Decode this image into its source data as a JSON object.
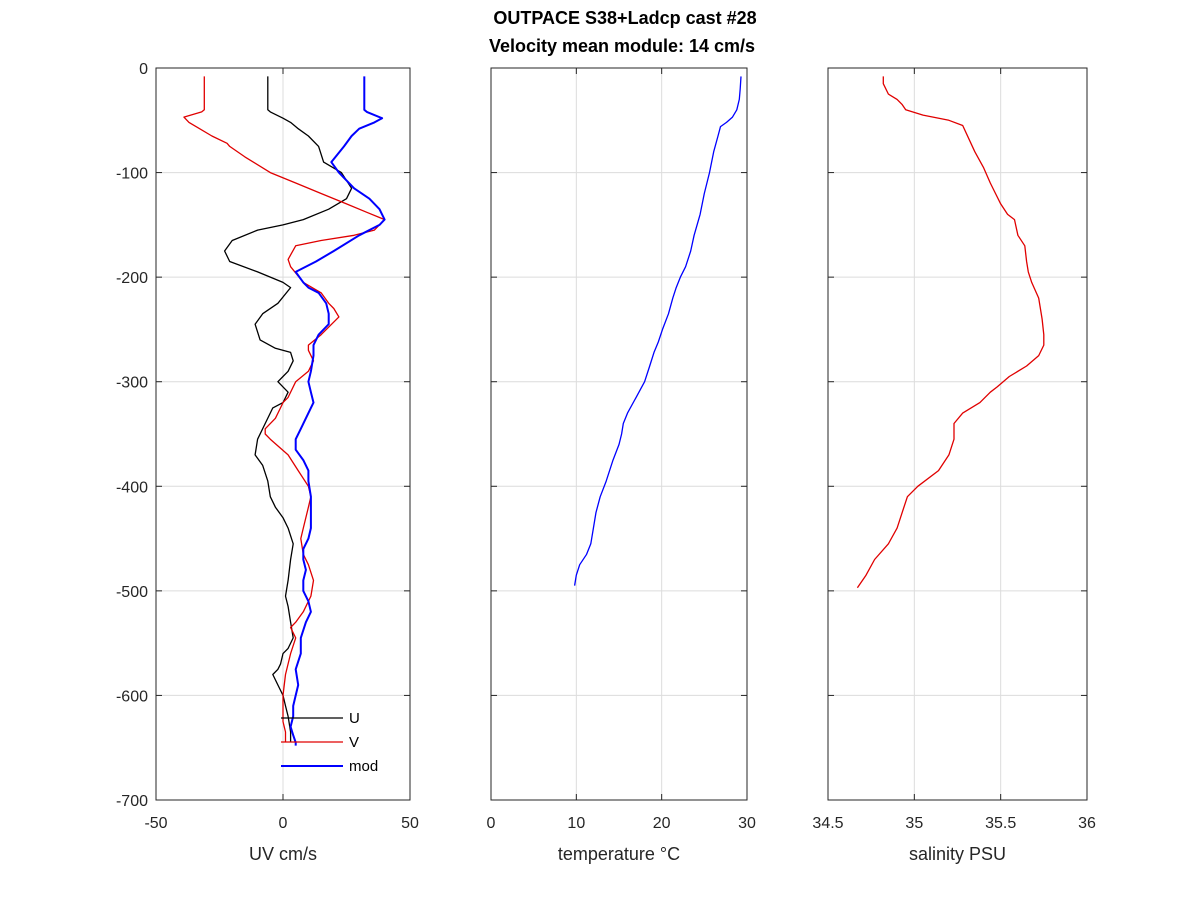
{
  "figure": {
    "title_line1": "OUTPACE S38+Ladcp cast #28",
    "title_line2": "Velocity mean module:  14 cm/s"
  },
  "chart_data": [
    {
      "type": "line",
      "xlabel": "UV cm/s",
      "ylabel": "",
      "xlim": [
        -50,
        50
      ],
      "ylim": [
        -700,
        0
      ],
      "xticks": [
        -50,
        0,
        50
      ],
      "yticks": [
        0,
        -100,
        -200,
        -300,
        -400,
        -500,
        -600,
        -700
      ],
      "grid": true,
      "legend": "bottom-center",
      "series": [
        {
          "name": "U",
          "color": "#000000",
          "x": [
            -6,
            -6,
            -5,
            0,
            3,
            6,
            10,
            14,
            16,
            23,
            27,
            25,
            18,
            8,
            0,
            -10,
            -20,
            -23,
            -21,
            -10,
            0,
            3,
            -2,
            -8,
            -11,
            -9,
            -3,
            3,
            4,
            2,
            0,
            -2,
            2,
            0,
            -4,
            -7,
            -10,
            -11,
            -8,
            -6,
            -5,
            -3,
            0,
            2,
            4,
            3,
            2,
            1,
            2,
            3,
            4,
            2,
            0,
            -1,
            -2,
            -4,
            -2,
            0,
            1,
            2,
            3,
            3
          ],
          "y": [
            -8,
            -40,
            -42,
            -48,
            -52,
            -58,
            -65,
            -75,
            -90,
            -100,
            -115,
            -125,
            -135,
            -145,
            -150,
            -155,
            -165,
            -175,
            -185,
            -195,
            -205,
            -210,
            -225,
            -235,
            -245,
            -260,
            -268,
            -272,
            -280,
            -290,
            -295,
            -300,
            -310,
            -320,
            -325,
            -340,
            -355,
            -370,
            -380,
            -395,
            -410,
            -420,
            -430,
            -440,
            -455,
            -470,
            -490,
            -505,
            -515,
            -530,
            -545,
            -555,
            -560,
            -570,
            -575,
            -580,
            -590,
            -600,
            -610,
            -620,
            -635,
            -645
          ]
        },
        {
          "name": "V",
          "color": "#e00000",
          "x": [
            -31,
            -31,
            -32,
            -39,
            -37,
            -28,
            -22,
            -21,
            -15,
            -5,
            5,
            15,
            25,
            33,
            38,
            40,
            36,
            28,
            15,
            5,
            2,
            3,
            8,
            15,
            18,
            20,
            22,
            15,
            10,
            10,
            12,
            10,
            5,
            2,
            0,
            -1,
            -3,
            -7,
            -7,
            -5,
            2,
            6,
            10,
            11,
            10,
            8,
            7,
            8,
            10,
            12,
            11,
            8,
            5,
            3,
            5,
            3,
            1,
            0,
            0,
            0,
            1,
            1
          ],
          "y": [
            -8,
            -40,
            -42,
            -47,
            -52,
            -65,
            -72,
            -75,
            -85,
            -100,
            -110,
            -120,
            -130,
            -138,
            -143,
            -145,
            -155,
            -160,
            -165,
            -170,
            -183,
            -190,
            -205,
            -215,
            -225,
            -230,
            -238,
            -255,
            -265,
            -270,
            -280,
            -290,
            -300,
            -315,
            -320,
            -325,
            -335,
            -345,
            -350,
            -355,
            -370,
            -385,
            -400,
            -410,
            -420,
            -440,
            -450,
            -465,
            -475,
            -490,
            -505,
            -520,
            -530,
            -535,
            -545,
            -560,
            -580,
            -600,
            -615,
            -625,
            -635,
            -645
          ]
        },
        {
          "name": "mod",
          "color": "#0000ff",
          "x": [
            32,
            32,
            33,
            39,
            36,
            30,
            27,
            24,
            19,
            22,
            28,
            34,
            38,
            40,
            38,
            30,
            20,
            13,
            5,
            8,
            10,
            14,
            17,
            18,
            18,
            14,
            12,
            12,
            11,
            10,
            11,
            12,
            10,
            7,
            5,
            5,
            8,
            10,
            10,
            11,
            11,
            11,
            10,
            8,
            8,
            9,
            8,
            8,
            10,
            11,
            9,
            7,
            7,
            5,
            6,
            5,
            4,
            4,
            3,
            4,
            5,
            5
          ],
          "y": [
            -8,
            -40,
            -42,
            -48,
            -52,
            -58,
            -65,
            -75,
            -90,
            -100,
            -115,
            -125,
            -135,
            -145,
            -150,
            -160,
            -175,
            -185,
            -195,
            -205,
            -210,
            -215,
            -225,
            -235,
            -245,
            -255,
            -265,
            -275,
            -290,
            -300,
            -310,
            -320,
            -330,
            -345,
            -355,
            -365,
            -375,
            -385,
            -395,
            -410,
            -425,
            -440,
            -450,
            -460,
            -470,
            -480,
            -490,
            -500,
            -510,
            -520,
            -530,
            -545,
            -560,
            -575,
            -590,
            -600,
            -610,
            -620,
            -630,
            -638,
            -645,
            -648
          ]
        }
      ],
      "legend_entries": [
        "U",
        "V",
        "mod"
      ]
    },
    {
      "type": "line",
      "xlabel": "temperature °C",
      "ylabel": "",
      "xlim": [
        0,
        30
      ],
      "ylim": [
        -700,
        0
      ],
      "xticks": [
        0,
        10,
        20,
        30
      ],
      "yticks": [
        0,
        -100,
        -200,
        -300,
        -400,
        -500,
        -600,
        -700
      ],
      "grid": true,
      "series": [
        {
          "color": "#0000ff",
          "x": [
            29.3,
            29.2,
            29.1,
            28.8,
            28.3,
            27.6,
            26.9,
            26.6,
            26.1,
            25.6,
            25.0,
            24.5,
            23.8,
            23.4,
            22.8,
            22.2,
            21.7,
            21.3,
            20.8,
            20.1,
            19.6,
            19.1,
            18.6,
            18.0,
            17.0,
            16.0,
            15.5,
            15.3,
            15.0,
            14.3,
            13.5,
            12.8,
            12.3,
            12.0,
            11.7,
            11.2,
            10.4,
            10.0,
            9.8
          ],
          "y": [
            -8,
            -20,
            -30,
            -40,
            -47,
            -52,
            -56,
            -65,
            -80,
            -100,
            -120,
            -140,
            -160,
            -175,
            -190,
            -200,
            -210,
            -220,
            -235,
            -250,
            -262,
            -272,
            -285,
            -300,
            -315,
            -330,
            -340,
            -350,
            -360,
            -375,
            -395,
            -410,
            -425,
            -440,
            -455,
            -465,
            -475,
            -485,
            -495
          ]
        }
      ]
    },
    {
      "type": "line",
      "xlabel": "salinity PSU",
      "ylabel": "",
      "xlim": [
        34.5,
        36
      ],
      "ylim": [
        -700,
        0
      ],
      "xticks": [
        34.5,
        35,
        35.5,
        36
      ],
      "yticks": [
        0,
        -100,
        -200,
        -300,
        -400,
        -500,
        -600,
        -700
      ],
      "grid": true,
      "series": [
        {
          "color": "#e00000",
          "x": [
            34.82,
            34.82,
            34.85,
            34.9,
            34.93,
            34.95,
            35.05,
            35.2,
            35.28,
            35.35,
            35.4,
            35.44,
            35.47,
            35.5,
            35.54,
            35.58,
            35.6,
            35.64,
            35.65,
            35.66,
            35.68,
            35.72,
            35.74,
            35.75,
            35.75,
            35.72,
            35.65,
            35.55,
            35.48,
            35.44,
            35.38,
            35.28,
            35.23,
            35.23,
            35.2,
            35.14,
            35.02,
            34.96,
            34.93,
            34.9,
            34.85,
            34.77,
            34.72,
            34.67
          ],
          "y": [
            -8,
            -15,
            -25,
            -30,
            -35,
            -40,
            -45,
            -50,
            -55,
            -80,
            -95,
            -110,
            -120,
            -130,
            -140,
            -145,
            -160,
            -170,
            -185,
            -195,
            -205,
            -220,
            -240,
            -255,
            -265,
            -275,
            -285,
            -295,
            -305,
            -310,
            -320,
            -330,
            -340,
            -355,
            -370,
            -385,
            -400,
            -410,
            -425,
            -440,
            -455,
            -470,
            -485,
            -497
          ]
        }
      ]
    }
  ]
}
